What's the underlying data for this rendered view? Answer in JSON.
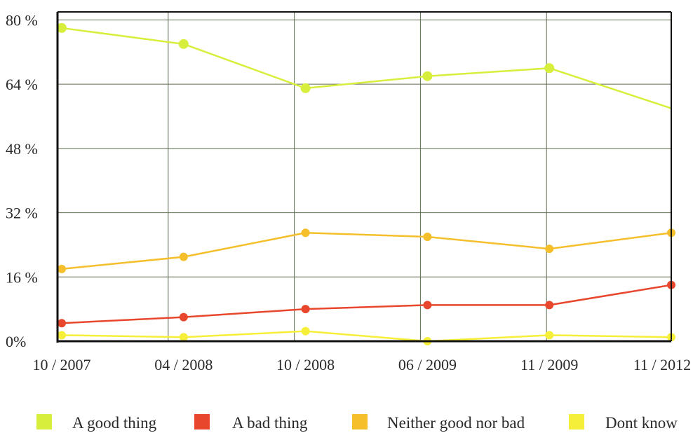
{
  "chart_data": {
    "type": "line",
    "title": "",
    "xlabel": "",
    "ylabel": "",
    "categories": [
      "10 / 2007",
      "04 / 2008",
      "10 / 2008",
      "06 / 2009",
      "11 / 2009",
      "11 / 2012"
    ],
    "ylim": [
      0,
      80
    ],
    "y_ticks": [
      {
        "value": 80,
        "label": "80 %"
      },
      {
        "value": 64,
        "label": "64 %"
      },
      {
        "value": 48,
        "label": "48 %"
      },
      {
        "value": 32,
        "label": "32 %"
      },
      {
        "value": 16,
        "label": "16 %"
      },
      {
        "value": 0,
        "label": "0%"
      }
    ],
    "grid": true,
    "legend_position": "bottom",
    "series": [
      {
        "name": "A good thing",
        "color": "#d7ef3c",
        "values": [
          78,
          74,
          63,
          66,
          68,
          58
        ]
      },
      {
        "name": "A bad thing",
        "color": "#e8472d",
        "values": [
          4.5,
          6,
          8,
          9,
          9,
          14
        ]
      },
      {
        "name": "Neither good nor bad",
        "color": "#f5bf2c",
        "values": [
          18,
          21,
          27,
          26,
          23,
          27
        ]
      },
      {
        "name": "Dont know",
        "color": "#f6ef3a",
        "values": [
          1.5,
          1,
          2.5,
          0,
          1.5,
          1
        ]
      }
    ]
  }
}
